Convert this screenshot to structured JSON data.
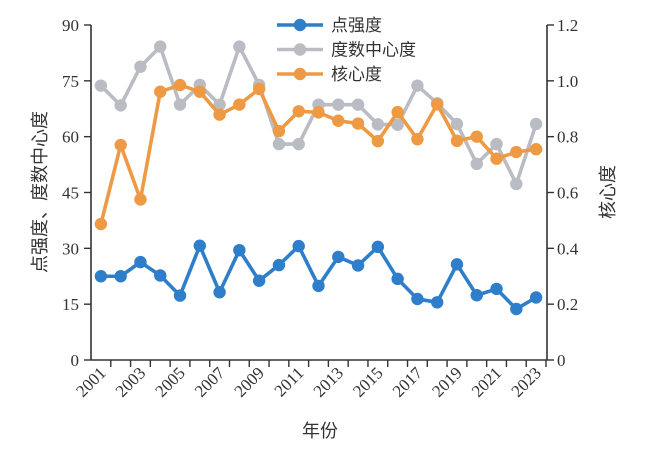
{
  "chart_data": {
    "type": "line",
    "title": "",
    "xlabel": "年份",
    "ylabel_left": "点强度、度数中心度",
    "ylabel_right": "核心度",
    "x": [
      2001,
      2002,
      2003,
      2004,
      2005,
      2006,
      2007,
      2008,
      2009,
      2010,
      2011,
      2012,
      2013,
      2014,
      2015,
      2016,
      2017,
      2018,
      2019,
      2020,
      2021,
      2022,
      2023
    ],
    "x_tick_labels": [
      "2001",
      "2003",
      "2005",
      "2007",
      "2009",
      "2011",
      "2013",
      "2015",
      "2017",
      "2019",
      "2021",
      "2023"
    ],
    "ylim_left": [
      0,
      90
    ],
    "yticks_left": [
      "0",
      "15",
      "30",
      "45",
      "60",
      "75",
      "90"
    ],
    "ylim_right": [
      0,
      1.2
    ],
    "yticks_right": [
      "0",
      "0.2",
      "0.4",
      "0.6",
      "0.8",
      "1.0",
      "1.2"
    ],
    "grid": false,
    "legend_position": "top-center",
    "series": [
      {
        "name": "点强度",
        "axis": "left",
        "color": "#2e7ec9",
        "values": [
          22.5,
          22.5,
          26.3,
          22.7,
          17.3,
          30.7,
          18.2,
          29.5,
          21.3,
          25.5,
          30.6,
          19.9,
          27.7,
          25.4,
          30.4,
          21.8,
          16.4,
          15.5,
          25.7,
          17.4,
          19.1,
          13.7,
          16.8
        ]
      },
      {
        "name": "度数中心度",
        "axis": "left",
        "color": "#b9bcc2",
        "values": [
          73.7,
          68.4,
          78.8,
          84.2,
          68.6,
          73.9,
          68.6,
          84.2,
          73.9,
          58.0,
          58.0,
          68.6,
          68.6,
          68.6,
          63.3,
          63.2,
          73.7,
          69.0,
          63.4,
          52.7,
          58.0,
          47.3,
          63.4
        ]
      },
      {
        "name": "核心度",
        "axis": "right",
        "color": "#ee9a45",
        "values": [
          0.487,
          0.77,
          0.575,
          0.961,
          0.985,
          0.961,
          0.879,
          0.915,
          0.971,
          0.82,
          0.891,
          0.887,
          0.857,
          0.847,
          0.784,
          0.888,
          0.791,
          0.916,
          0.785,
          0.8,
          0.721,
          0.745,
          0.755
        ]
      }
    ]
  }
}
